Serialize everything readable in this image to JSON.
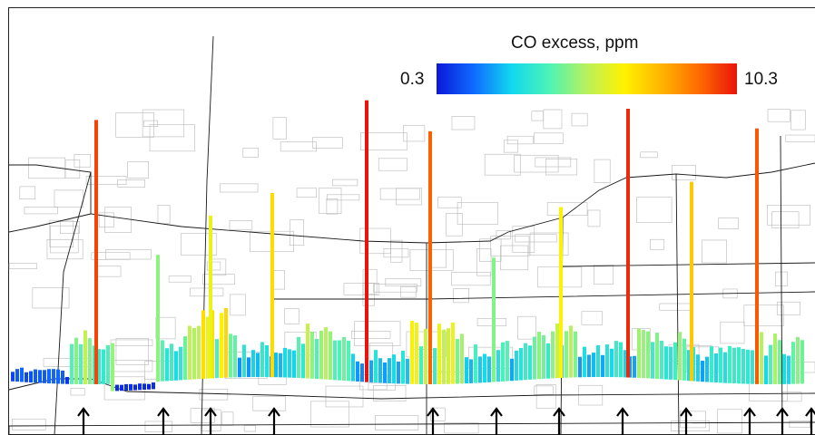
{
  "legend": {
    "title": "CO excess, ppm",
    "min_label": "0.3",
    "max_label": "10.3",
    "min_value": 0.3,
    "max_value": 10.3,
    "colormap": [
      "#0a18d8",
      "#0f6bff",
      "#11d8ee",
      "#4cf3b6",
      "#b9f15c",
      "#fff200",
      "#ffb400",
      "#ff6a00",
      "#e8140b"
    ]
  },
  "colors": {
    "road": "#1a1a1a",
    "street": "#b8b8b8",
    "arrow": "#000000",
    "frame": "#222222"
  },
  "icons": {
    "arrow": "up-arrow-icon"
  },
  "transect": {
    "arrow_count": 13,
    "peaks_ppm": [
      9.6,
      4.8,
      6.2,
      7.0,
      10.3,
      9.2,
      4.7,
      6.5,
      10.0,
      7.4,
      9.3
    ],
    "background_ppm": [
      1.0,
      4.5,
      3.5,
      5.5,
      2.8,
      4.8,
      2.6,
      5.0,
      3.2,
      4.4,
      2.9,
      4.0,
      3.0,
      4.1
    ]
  }
}
